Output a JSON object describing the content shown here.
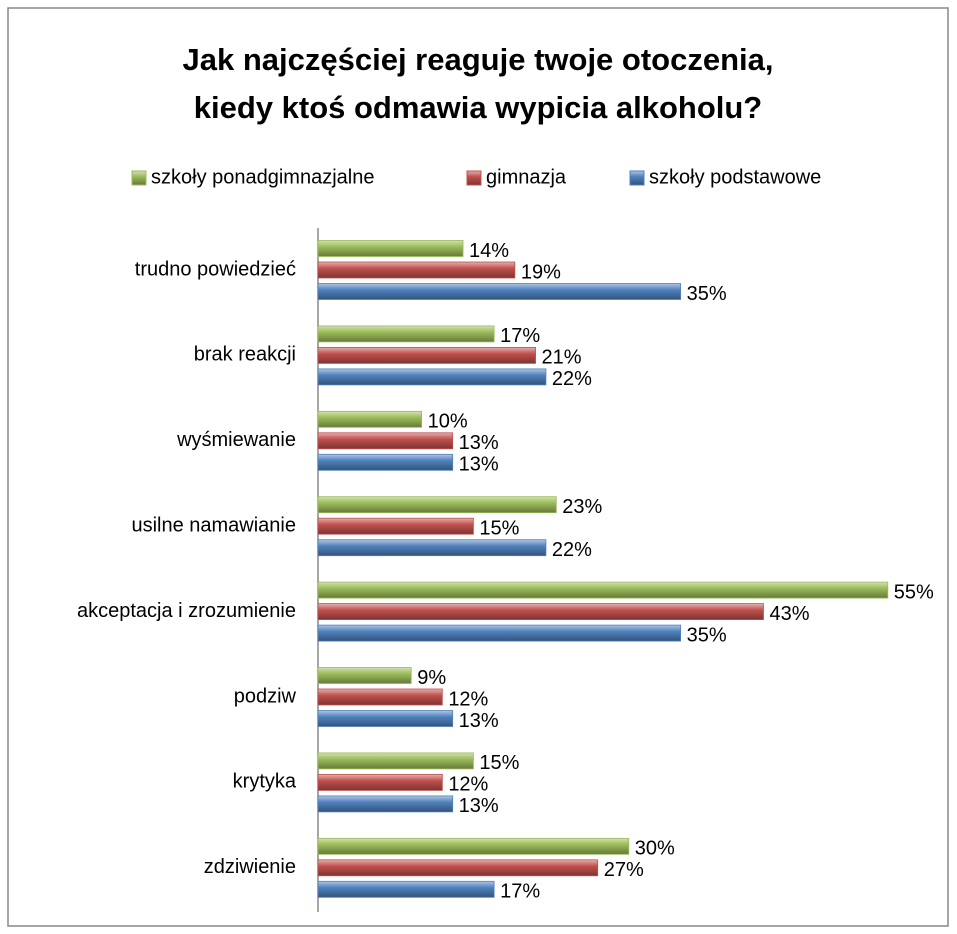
{
  "chart_data": {
    "type": "bar",
    "orientation": "horizontal",
    "title": [
      "Jak najczęściej reaguje twoje otoczenia,",
      "kiedy ktoś odmawia wypicia alkoholu?"
    ],
    "categories": [
      "trudno powiedzieć",
      "brak reakcji",
      "wyśmiewanie",
      "usilne namawianie",
      "akceptacja i zrozumienie",
      "podziw",
      "krytyka",
      "zdziwienie"
    ],
    "series": [
      {
        "name": "szkoły ponadgimnazjalne",
        "color": "#9bbb59",
        "values": [
          14,
          17,
          10,
          23,
          55,
          9,
          15,
          30
        ],
        "value_labels": [
          "14%",
          "17%",
          "10%",
          "23%",
          "55%",
          "9%",
          "15%",
          "30%"
        ]
      },
      {
        "name": "gimnazja",
        "color": "#c0504d",
        "values": [
          19,
          21,
          13,
          15,
          43,
          12,
          12,
          27
        ],
        "value_labels": [
          "19%",
          "21%",
          "13%",
          "15%",
          "43%",
          "12%",
          "12%",
          "27%"
        ]
      },
      {
        "name": "szkoły podstawowe",
        "color": "#4f81bd",
        "values": [
          35,
          22,
          13,
          22,
          35,
          13,
          13,
          17
        ],
        "value_labels": [
          "35%",
          "22%",
          "13%",
          "22%",
          "35%",
          "13%",
          "13%",
          "17%"
        ]
      }
    ],
    "xlim": [
      0,
      60
    ],
    "legend": "top"
  }
}
